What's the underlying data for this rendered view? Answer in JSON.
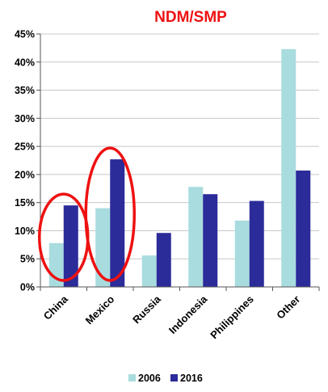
{
  "chart_data": {
    "type": "bar",
    "title": "NDM/SMP",
    "title_color": "#ee1111",
    "categories": [
      "China",
      "Mexico",
      "Russia",
      "Indonesia",
      "Philippines",
      "Other"
    ],
    "series": [
      {
        "name": "2006",
        "values": [
          7.8,
          14.0,
          5.6,
          17.8,
          11.8,
          42.3
        ],
        "color": "#a9dcdf"
      },
      {
        "name": "2016",
        "values": [
          14.5,
          22.7,
          9.6,
          16.5,
          15.3,
          20.7
        ],
        "color": "#2b2b9a"
      }
    ],
    "ylim": [
      0,
      45
    ],
    "yticks": [
      "0%",
      "5%",
      "10%",
      "15%",
      "20%",
      "25%",
      "30%",
      "35%",
      "40%",
      "45%"
    ],
    "grid": true,
    "legend_position": "bottom",
    "highlight_color": "#ee1111",
    "highlighted_categories": [
      "China",
      "Mexico"
    ]
  }
}
